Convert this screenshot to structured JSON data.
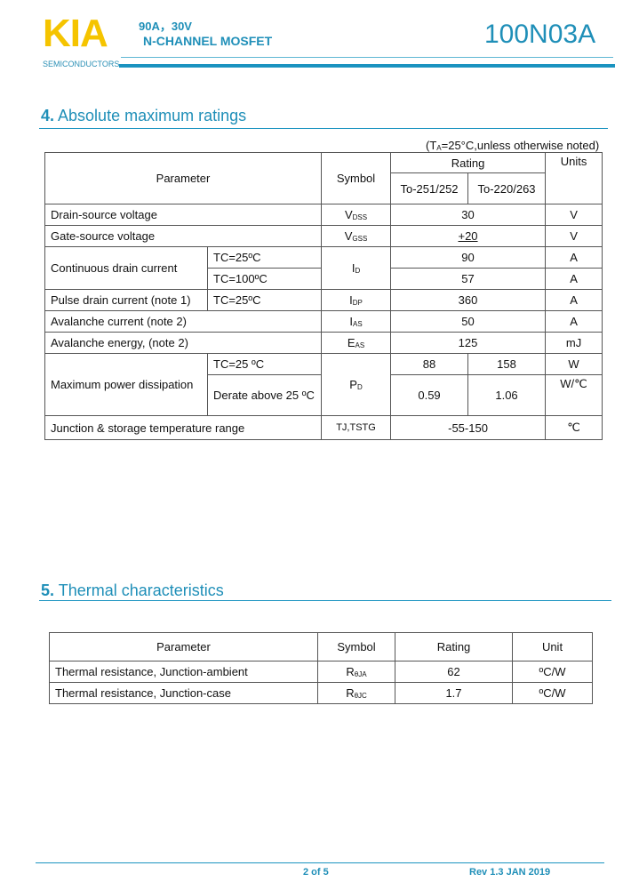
{
  "header": {
    "logo": "KIA",
    "logo_sub": "SEMICONDUCTORS",
    "spec_line1": "90A，30V",
    "spec_line2": "N-CHANNEL MOSFET",
    "part_number": "100N03A"
  },
  "section4": {
    "number": "4.",
    "title": "Absolute maximum ratings",
    "note": "(TA=25°C,unless otherwise noted)",
    "note_pre": "(T",
    "note_sub": "A",
    "note_post": "=25°C,unless otherwise noted)",
    "headers": {
      "parameter": "Parameter",
      "symbol": "Symbol",
      "rating": "Rating",
      "pkg1": "To-251/252",
      "pkg2": "To-220/263",
      "units": "Units"
    },
    "rows": [
      {
        "param": "Drain-source voltage",
        "sym": "V",
        "sub": "DSS",
        "val": "30",
        "unit": "V"
      },
      {
        "param": "Gate-source voltage",
        "sym": "V",
        "sub": "GSS",
        "val": "+20",
        "unit": "V"
      },
      {
        "param": "Continuous drain current",
        "cond1": "TC=25ºC",
        "cond2": "TC=100ºC",
        "sym": "I",
        "sub": "D",
        "val1": "90",
        "val2": "57",
        "unit": "A"
      },
      {
        "param": "Pulse drain current (note 1)",
        "cond": "TC=25ºC",
        "sym": "I",
        "sub": "DP",
        "val": "360",
        "unit": "A"
      },
      {
        "param": "Avalanche current (note 2)",
        "sym": "I",
        "sub": "AS",
        "val": "50",
        "unit": "A"
      },
      {
        "param": "Avalanche energy, (note 2)",
        "sym": "E",
        "sub": "AS",
        "val": "125",
        "unit": "mJ"
      },
      {
        "param": "Maximum power dissipation",
        "cond1": "TC=25 ºC",
        "cond2": "Derate above 25 ºC",
        "sym": "P",
        "sub": "D",
        "v11": "88",
        "v12": "158",
        "unit1": "W",
        "v21": "0.59",
        "v22": "1.06",
        "unit2": "W/℃"
      },
      {
        "param": "Junction & storage temperature range",
        "sym": "TJ,TSTG",
        "val": "-55-150",
        "unit": "℃"
      }
    ]
  },
  "section5": {
    "number": "5.",
    "title": "Thermal characteristics",
    "headers": [
      "Parameter",
      "Symbol",
      "Rating",
      "Unit"
    ],
    "rows": [
      {
        "param": "Thermal resistance, Junction-ambient",
        "sym": "R",
        "sub": "θJA",
        "val": "62",
        "unit": "ºC/W"
      },
      {
        "param": "Thermal resistance, Junction-case",
        "sym": "R",
        "sub": "θJC",
        "val": "1.7",
        "unit": "ºC/W"
      }
    ]
  },
  "footer": {
    "page": "2 of 5",
    "rev": "Rev 1.3 JAN 2019"
  }
}
